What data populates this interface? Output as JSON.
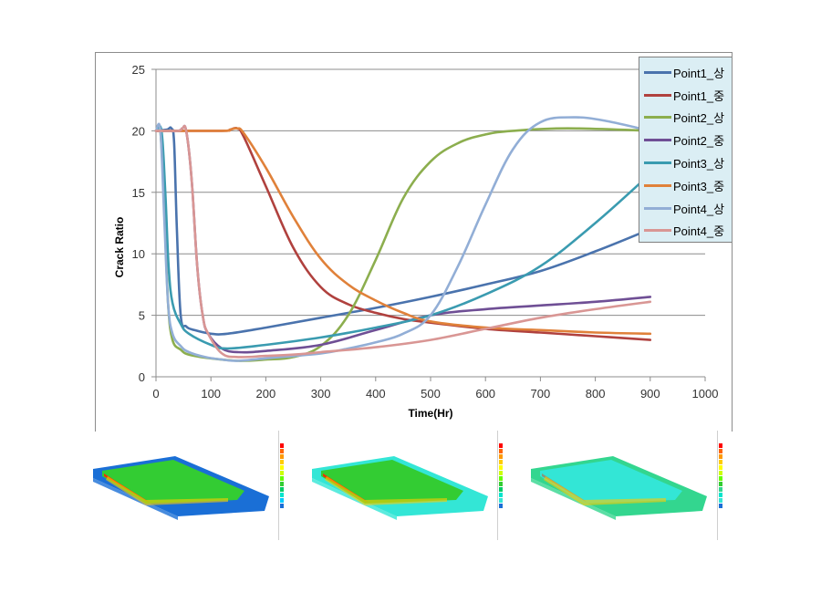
{
  "chart_data": {
    "type": "line",
    "title": "",
    "xlabel": "Time(Hr)",
    "ylabel": "Crack Ratio",
    "xlim": [
      0,
      1000
    ],
    "ylim": [
      0,
      25
    ],
    "xticks": [
      0,
      100,
      200,
      300,
      400,
      500,
      600,
      700,
      800,
      900,
      1000
    ],
    "yticks": [
      0,
      5,
      10,
      15,
      20,
      25
    ],
    "grid": "horizontal",
    "legend_position": "top-right",
    "series": [
      {
        "name": "Point1_상",
        "color": "#4a73ad",
        "x": [
          0,
          20,
          28,
          33,
          38,
          45,
          55,
          70,
          100,
          130,
          200,
          300,
          400,
          500,
          600,
          700,
          800,
          900
        ],
        "y": [
          20,
          20.1,
          20.2,
          19,
          12,
          5,
          4.1,
          3.8,
          3.5,
          3.5,
          4,
          4.8,
          5.6,
          6.5,
          7.5,
          8.6,
          10.2,
          12.0
        ]
      },
      {
        "name": "Point1_중",
        "color": "#b0413e",
        "x": [
          0,
          120,
          135,
          148,
          160,
          200,
          250,
          300,
          350,
          400,
          450,
          500,
          600,
          700,
          800,
          900
        ],
        "y": [
          20,
          20,
          20.1,
          20.2,
          19.5,
          15.5,
          10.5,
          7.3,
          5.9,
          5.2,
          4.7,
          4.4,
          3.9,
          3.6,
          3.3,
          3.0
        ]
      },
      {
        "name": "Point2_상",
        "color": "#8cae4e",
        "x": [
          0,
          8,
          15,
          22,
          30,
          45,
          60,
          100,
          150,
          200,
          250,
          300,
          350,
          400,
          450,
          500,
          550,
          600,
          650,
          750,
          900
        ],
        "y": [
          20,
          20,
          14,
          6,
          3,
          2.2,
          1.8,
          1.5,
          1.3,
          1.4,
          1.6,
          2.5,
          5,
          9.5,
          14.5,
          17.5,
          19,
          19.7,
          20,
          20.2,
          20
        ]
      },
      {
        "name": "Point2_중",
        "color": "#6f4f95",
        "x": [
          0,
          40,
          48,
          55,
          65,
          75,
          85,
          95,
          120,
          150,
          200,
          300,
          400,
          500,
          600,
          700,
          800,
          900
        ],
        "y": [
          20,
          20,
          20.2,
          20,
          16,
          9,
          5,
          3.5,
          2.3,
          2,
          2.1,
          2.6,
          3.8,
          5,
          5.5,
          5.8,
          6.1,
          6.5
        ]
      },
      {
        "name": "Point3_상",
        "color": "#3a9bb0",
        "x": [
          0,
          10,
          17,
          23,
          30,
          45,
          60,
          100,
          130,
          200,
          300,
          400,
          500,
          600,
          700,
          800,
          900
        ],
        "y": [
          20,
          20,
          15,
          9,
          6,
          4.3,
          3.5,
          2.6,
          2.3,
          2.6,
          3.2,
          4,
          5,
          6.7,
          9,
          12.5,
          16.5
        ]
      },
      {
        "name": "Point3_중",
        "color": "#e0813a",
        "x": [
          0,
          120,
          135,
          148,
          160,
          200,
          250,
          300,
          350,
          400,
          450,
          500,
          600,
          700,
          800,
          900
        ],
        "y": [
          20,
          20,
          20.1,
          20.2,
          19.8,
          17,
          13,
          9.6,
          7.5,
          6.2,
          5.2,
          4.5,
          4,
          3.8,
          3.6,
          3.5
        ]
      },
      {
        "name": "Point4_상",
        "color": "#92aed6",
        "x": [
          0,
          8,
          15,
          22,
          30,
          45,
          60,
          90,
          120,
          150,
          200,
          300,
          350,
          400,
          450,
          500,
          550,
          600,
          650,
          700,
          760,
          820,
          900
        ],
        "y": [
          20,
          20,
          13,
          6,
          3.5,
          2.5,
          2,
          1.6,
          1.4,
          1.3,
          1.5,
          1.9,
          2.3,
          2.8,
          3.5,
          5,
          9,
          14,
          18.5,
          20.7,
          21.1,
          20.8,
          20
        ]
      },
      {
        "name": "Point4_중",
        "color": "#d99694",
        "x": [
          0,
          40,
          48,
          55,
          65,
          75,
          85,
          95,
          120,
          150,
          200,
          250,
          300,
          400,
          500,
          600,
          700,
          800,
          900
        ],
        "y": [
          20,
          20,
          20.2,
          20,
          16,
          9,
          5,
          3.5,
          1.9,
          1.6,
          1.7,
          1.8,
          2,
          2.4,
          3,
          3.9,
          4.8,
          5.5,
          6.1
        ]
      }
    ]
  },
  "legend": {
    "items": [
      "Point1_상",
      "Point1_중",
      "Point2_상",
      "Point2_중",
      "Point3_상",
      "Point3_중",
      "Point4_상",
      "Point4_중"
    ]
  },
  "simulation_images": [
    {
      "name": "contour-plot-1",
      "base_color": "#1a6fd6",
      "inner_color": "#33cc33",
      "legend_colors": [
        "#ff0000",
        "#ff6600",
        "#ff9900",
        "#ffcc00",
        "#ffff00",
        "#ccff00",
        "#66ff00",
        "#33cc33",
        "#00cc66",
        "#00e5cc",
        "#00ccff",
        "#1a6fd6"
      ]
    },
    {
      "name": "contour-plot-2",
      "base_color": "#33e6d6",
      "inner_color": "#33cc33",
      "legend_colors": [
        "#ff0000",
        "#ff6600",
        "#ff9900",
        "#ffcc00",
        "#ffff00",
        "#ccff00",
        "#66ff00",
        "#33cc33",
        "#00cc66",
        "#00e5cc",
        "#33e6d6",
        "#1a6fd6"
      ]
    },
    {
      "name": "contour-plot-3",
      "base_color": "#33d68f",
      "inner_color": "#33e6d6",
      "legend_colors": [
        "#ff0000",
        "#ff6600",
        "#ff9900",
        "#ffcc00",
        "#ffff00",
        "#ccff00",
        "#66ff00",
        "#33cc33",
        "#33d68f",
        "#00e5cc",
        "#33e6d6",
        "#1a6fd6"
      ]
    }
  ]
}
